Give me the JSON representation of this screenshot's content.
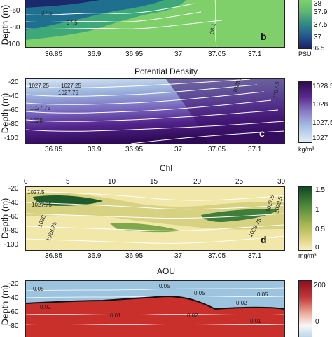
{
  "chart_data": [
    {
      "type": "heatmap",
      "panel_letter": "b",
      "title": "",
      "ylabel": "Depth (m)",
      "x_ticks": [
        "36.85",
        "36.9",
        "36.95",
        "37",
        "37.05",
        "37.1"
      ],
      "y_ticks": [
        "-60",
        "-80",
        "-100"
      ],
      "colorbar_ticks": [
        "38",
        "37.9",
        "37.5",
        "37",
        "36.5"
      ],
      "colorbar_unit": "PSU",
      "contour_labels": [
        "37.5",
        "37.5",
        "38.1"
      ],
      "colors": [
        "#7fcf6b",
        "#3fa878",
        "#1f6f8f",
        "#1a2a6c"
      ]
    },
    {
      "type": "heatmap",
      "panel_letter": "c",
      "title": "Potential Density",
      "ylabel": "Depth (m)",
      "x_ticks": [
        "36.85",
        "36.9",
        "36.95",
        "37",
        "37.05",
        "37.1"
      ],
      "y_ticks": [
        "-20",
        "-40",
        "-60",
        "-80",
        "-100"
      ],
      "colorbar_ticks": [
        "1028.5",
        "1028",
        "1027.5",
        "1027"
      ],
      "colorbar_unit": "kg/m³",
      "contour_labels": [
        "1027.25",
        "1027.25",
        "1027.75",
        "1027.75",
        "1028",
        "1028.25",
        "1027.5"
      ],
      "colors": [
        "#c9e0f2",
        "#8ea4d6",
        "#6a4aa8",
        "#3b1168"
      ]
    },
    {
      "type": "heatmap",
      "panel_letter": "d",
      "title": "Chl",
      "ylabel": "Depth (m)",
      "top_ticks": [
        "0",
        "5",
        "10",
        "15",
        "20",
        "25",
        "30"
      ],
      "x_ticks": [
        "36.85",
        "36.9",
        "36.95",
        "37",
        "37.05",
        "37.1"
      ],
      "y_ticks": [
        "-20",
        "-40",
        "-60",
        "-80",
        "-100"
      ],
      "colorbar_ticks": [
        "1.5",
        "1",
        "0.5",
        "0"
      ],
      "colorbar_unit": "mg/m³",
      "contour_labels": [
        "1027.5",
        "1027.75",
        "1028",
        "1028.25",
        "1027.5",
        "1028.5",
        "1028.75"
      ],
      "colors": [
        "#f3eab0",
        "#d9d27a",
        "#8fb45a",
        "#1e5a2a"
      ]
    },
    {
      "type": "heatmap",
      "panel_letter": "",
      "title": "AOU",
      "ylabel": "Depth (m)",
      "y_ticks": [
        "-20",
        "-40",
        "-60",
        "-80"
      ],
      "colorbar_ticks": [
        "200",
        "0"
      ],
      "contour_labels": [
        "0.05",
        "0.05",
        "0.05",
        "0.02",
        "0.01",
        "0.05",
        "0.02",
        "0.02",
        "0.01"
      ],
      "colors": [
        "#b2182b",
        "#e8a08a",
        "#f7f7f7",
        "#4a90c2"
      ]
    }
  ]
}
